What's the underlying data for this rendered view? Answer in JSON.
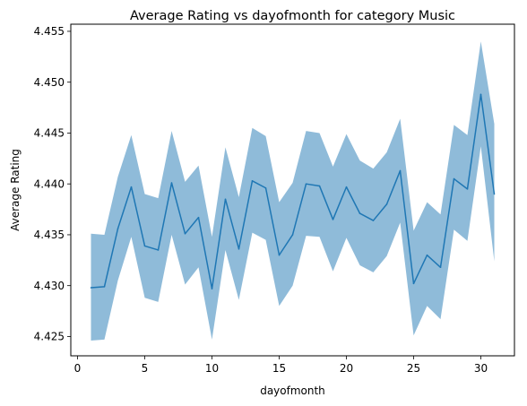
{
  "chart_data": {
    "type": "line",
    "title": "Average Rating vs dayofmonth for category Music",
    "xlabel": "dayofmonth",
    "ylabel": "Average Rating",
    "xlim": [
      -0.5,
      32.5
    ],
    "ylim": [
      4.4231,
      4.4557
    ],
    "xticks": [
      0,
      5,
      10,
      15,
      20,
      25,
      30
    ],
    "xtick_labels": [
      "0",
      "5",
      "10",
      "15",
      "20",
      "25",
      "30"
    ],
    "yticks": [
      4.425,
      4.43,
      4.435,
      4.44,
      4.445,
      4.45,
      4.455
    ],
    "ytick_labels": [
      "4.425",
      "4.430",
      "4.435",
      "4.440",
      "4.445",
      "4.450",
      "4.455"
    ],
    "grid": false,
    "line_color": "#1f77b4",
    "band_color": "#1f77b4",
    "band_opacity": 0.5,
    "series": [
      {
        "x": [
          1,
          2,
          3,
          4,
          5,
          6,
          7,
          8,
          9,
          10,
          11,
          12,
          13,
          14,
          15,
          16,
          17,
          18,
          19,
          20,
          21,
          22,
          23,
          24,
          25,
          26,
          27,
          28,
          29,
          30,
          31
        ],
        "values": [
          4.4298,
          4.4299,
          4.4356,
          4.4397,
          4.4339,
          4.4335,
          4.4401,
          4.4351,
          4.4367,
          4.4297,
          4.4385,
          4.4336,
          4.4403,
          4.4396,
          4.433,
          4.435,
          4.44,
          4.4398,
          4.4365,
          4.4397,
          4.4371,
          4.4364,
          4.438,
          4.4413,
          4.4302,
          4.433,
          4.4318,
          4.4405,
          4.4395,
          4.4488,
          4.439
        ],
        "lower": [
          4.4246,
          4.4247,
          4.4305,
          4.4348,
          4.4288,
          4.4284,
          4.435,
          4.4301,
          4.4318,
          4.4247,
          4.4335,
          4.4286,
          4.4352,
          4.4345,
          4.428,
          4.43,
          4.4349,
          4.4348,
          4.4314,
          4.4347,
          4.432,
          4.4313,
          4.4329,
          4.4362,
          4.4251,
          4.428,
          4.4267,
          4.4355,
          4.4344,
          4.4437,
          4.4324
        ],
        "upper": [
          4.4351,
          4.435,
          4.4407,
          4.4448,
          4.439,
          4.4386,
          4.4452,
          4.4402,
          4.4418,
          4.4348,
          4.4436,
          4.4387,
          4.4455,
          4.4447,
          4.4382,
          4.4401,
          4.4452,
          4.445,
          4.4417,
          4.4449,
          4.4423,
          4.4415,
          4.4431,
          4.4464,
          4.4354,
          4.4382,
          4.437,
          4.4458,
          4.4448,
          4.454,
          4.4459
        ]
      }
    ]
  }
}
